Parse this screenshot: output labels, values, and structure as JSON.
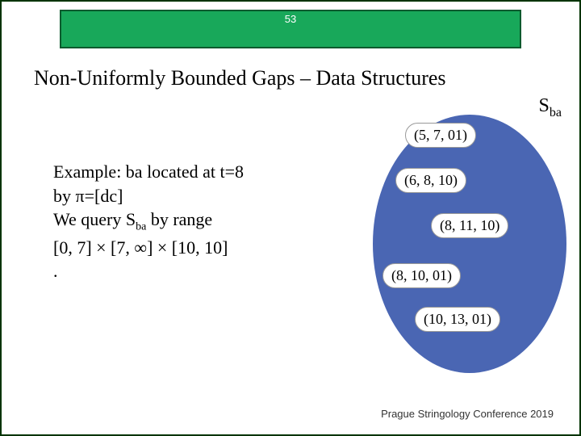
{
  "slide": {
    "number": "53",
    "title": "Non-Uniformly Bounded Gaps – Data Structures",
    "footer": "Prague Stringology Conference 2019"
  },
  "label": {
    "sba_html": "S<sub>ba</sub>"
  },
  "body": {
    "line1": "Example: ba located at t=8",
    "line2": "by π=[dc]",
    "line3_prefix": "We query  ",
    "line3_sba": "S",
    "line3_sba_sub": "ba",
    "line3_suffix": " by range",
    "line4": " [0, 7] × [7, ∞] × [10, 10]",
    "line5": "."
  },
  "tree": {
    "background": "#4a66b3",
    "nodes": [
      {
        "label": "(5, 7, 01)"
      },
      {
        "label": "(6, 8, 10)"
      },
      {
        "label": "(8, 11, 10)"
      },
      {
        "label": "(8, 10, 01)"
      },
      {
        "label": "(10, 13, 01)"
      }
    ]
  },
  "style": {
    "header_bg": "#18a85a",
    "header_border": "#0a5a2e",
    "slide_border": "#003300",
    "title_fontsize": 26,
    "body_fontsize": 22,
    "node_fontsize": 18
  }
}
